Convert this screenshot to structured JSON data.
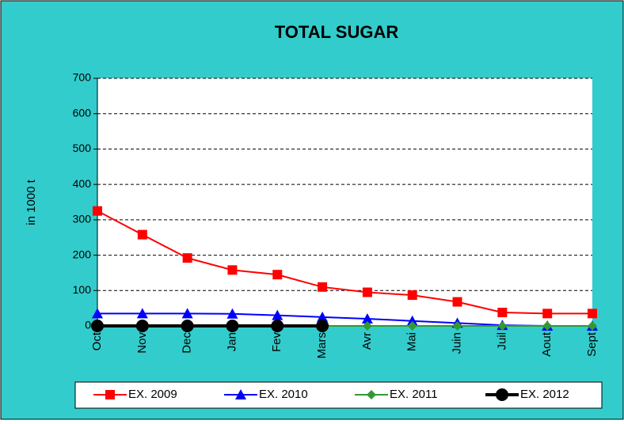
{
  "chart_data": {
    "type": "line",
    "title": "TOTAL SUGAR",
    "y_label": "in 1000 t",
    "categories": [
      "Oct",
      "Nov",
      "Dec",
      "Jan",
      "Fev",
      "Mars",
      "Avr",
      "Mai",
      "Juin",
      "Juil",
      "Aout",
      "Sept"
    ],
    "series": [
      {
        "name": "EX.  2009",
        "color": "#ff0000",
        "marker": "square",
        "values": [
          325,
          258,
          192,
          158,
          145,
          110,
          95,
          87,
          68,
          38,
          35,
          35
        ]
      },
      {
        "name": "EX.  2010",
        "color": "#0000ff",
        "marker": "triangle",
        "values": [
          35,
          35,
          35,
          34,
          30,
          25,
          20,
          14,
          8,
          2,
          0,
          0
        ]
      },
      {
        "name": "EX.  2011",
        "color": "#339933",
        "marker": "diamond",
        "values": [
          0,
          0,
          0,
          0,
          0,
          0,
          0,
          0,
          0,
          0,
          0,
          0
        ]
      },
      {
        "name": "EX.  2012",
        "color": "#000000",
        "marker": "circle",
        "values": [
          0,
          0,
          0,
          0,
          0,
          0,
          null,
          null,
          null,
          null,
          null,
          null
        ]
      }
    ],
    "ylim": [
      0,
      700
    ],
    "yticks": [
      0,
      100,
      200,
      300,
      400,
      500,
      600,
      700
    ],
    "grid": true,
    "legend": "bottom"
  }
}
